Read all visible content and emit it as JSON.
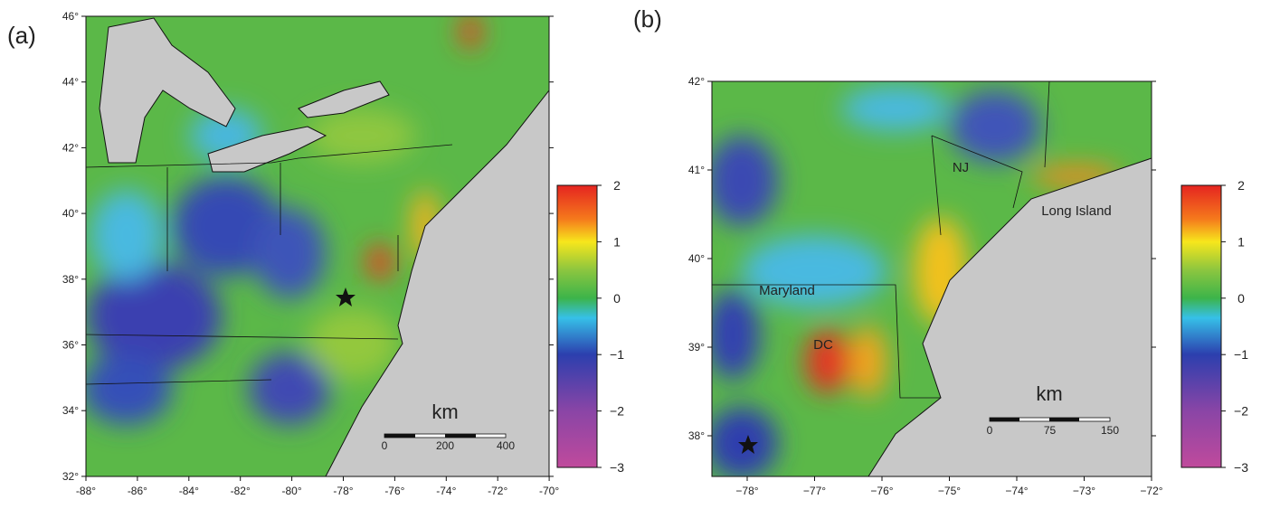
{
  "panels": [
    {
      "label": "(a)",
      "lat_ticks": [
        "46°",
        "44°",
        "42°",
        "40°",
        "38°",
        "36°",
        "34°",
        "32°"
      ],
      "lon_ticks": [
        "-88°",
        "-86°",
        "-84°",
        "-82°",
        "-80°",
        "-78°",
        "-76°",
        "-74°",
        "-72°",
        "-70°"
      ],
      "colorbar_ticks": [
        "2",
        "1",
        "0",
        "−1",
        "−2",
        "−3"
      ],
      "scale_unit": "km",
      "scale_ticks": [
        "0",
        "200",
        "400"
      ],
      "places": []
    },
    {
      "label": "(b)",
      "lat_ticks": [
        "42°",
        "41°",
        "40°",
        "39°",
        "38°"
      ],
      "lon_ticks": [
        "−78°",
        "−77°",
        "−76°",
        "−75°",
        "−74°",
        "−73°",
        "−72°"
      ],
      "colorbar_ticks": [
        "2",
        "1",
        "0",
        "−1",
        "−2",
        "−3"
      ],
      "scale_unit": "km",
      "scale_ticks": [
        "0",
        "75",
        "150"
      ],
      "places": [
        "NJ",
        "Long Island",
        "Maryland",
        "DC"
      ]
    }
  ]
}
